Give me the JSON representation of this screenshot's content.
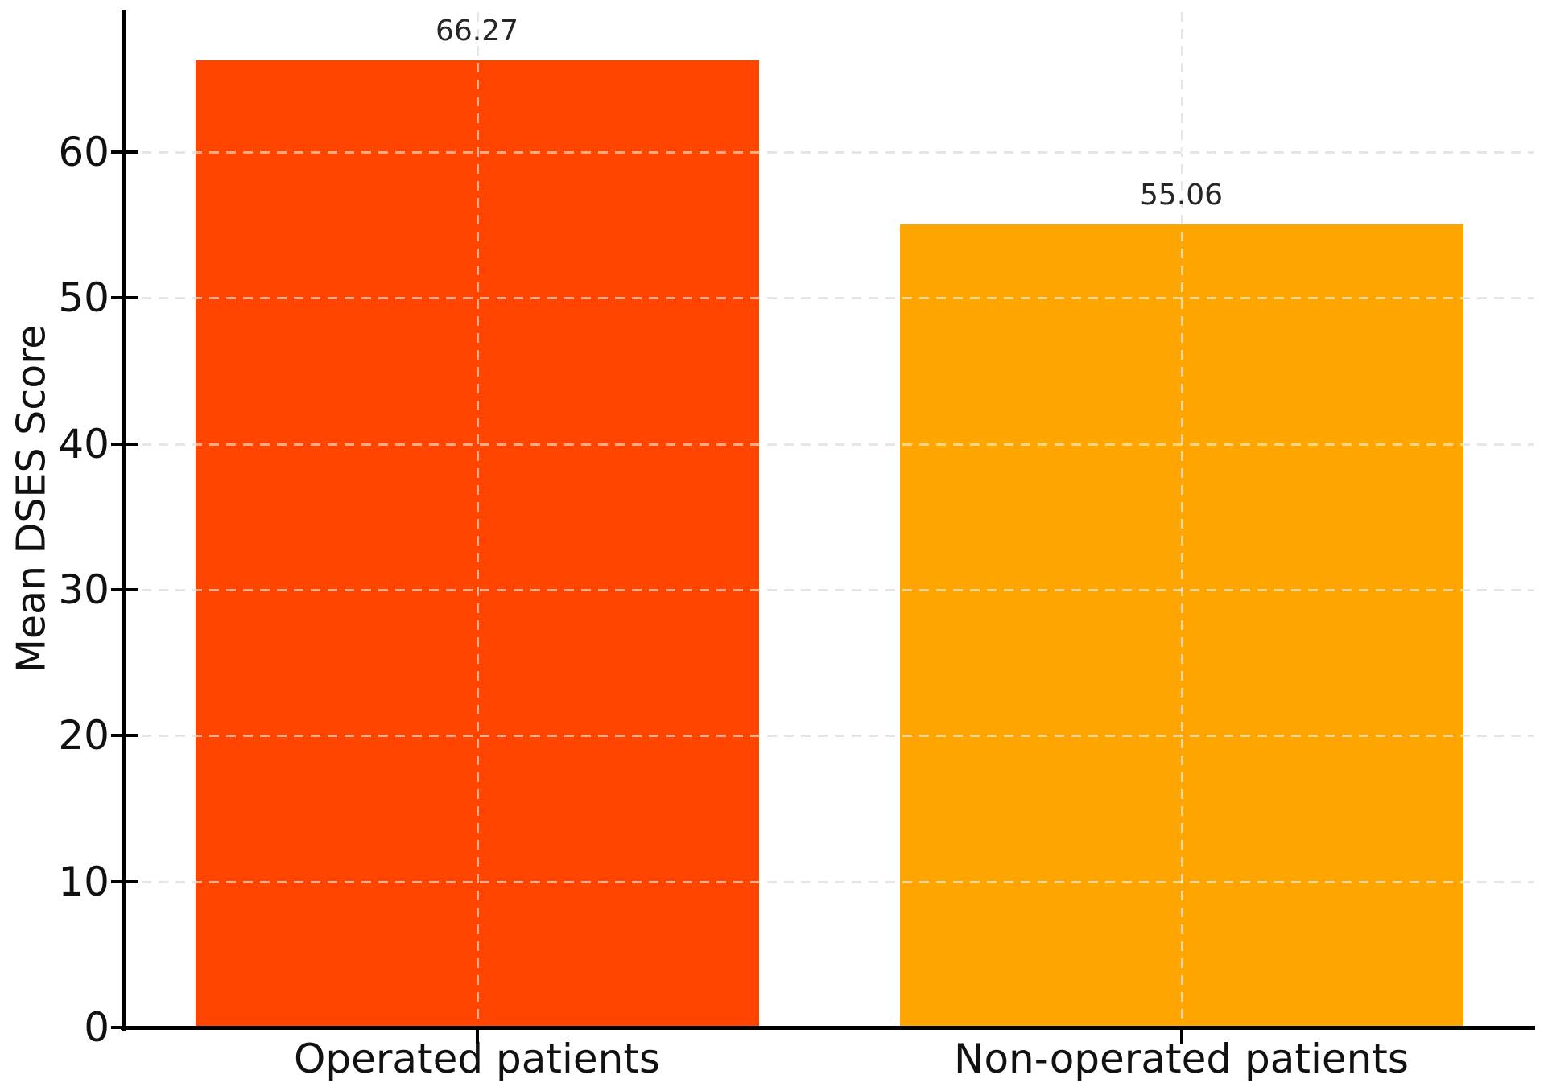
{
  "chart_data": {
    "type": "bar",
    "title": "",
    "categories": [
      "Operated patients",
      "Non-operated patients"
    ],
    "values": [
      66.27,
      55.06
    ],
    "value_labels": [
      "66.27",
      "55.06"
    ],
    "bar_colors": [
      "#ff4500",
      "#ffa500"
    ],
    "xlabel": "",
    "ylabel": "Mean DSES Score",
    "ylim": [
      0,
      69.6
    ],
    "yticks": [
      0,
      10,
      20,
      30,
      40,
      50,
      60
    ],
    "grid": {
      "style": "dashed",
      "color": "#c8c8c8",
      "horizontal": true,
      "vertical_at_bar_centers": true,
      "drawn_over_bars": true
    },
    "legend": "none",
    "axis_color": "#000000",
    "text_color": "#111111",
    "value_label_color": "#262626"
  }
}
